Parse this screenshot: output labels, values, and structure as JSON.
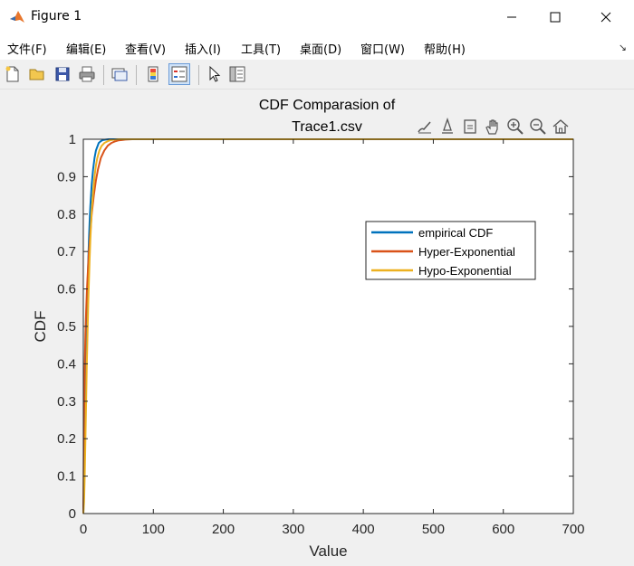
{
  "window": {
    "title": "Figure 1",
    "icon": "matlab-icon"
  },
  "menu": {
    "items": [
      {
        "label": "文件(F)"
      },
      {
        "label": "编辑(E)"
      },
      {
        "label": "查看(V)"
      },
      {
        "label": "插入(I)"
      },
      {
        "label": "工具(T)"
      },
      {
        "label": "桌面(D)"
      },
      {
        "label": "窗口(W)"
      },
      {
        "label": "帮助(H)"
      }
    ]
  },
  "toolbar": {
    "icons": [
      "new-figure-icon",
      "open-icon",
      "save-icon",
      "print-icon",
      "link-plot-icon",
      "colorbar-icon",
      "legend-icon",
      "pointer-icon",
      "property-editor-icon"
    ]
  },
  "axes_toolbar": {
    "icons": [
      "brush-icon",
      "data-tips-icon",
      "restore-view-icon",
      "pan-icon",
      "zoom-in-icon",
      "zoom-out-icon",
      "home-icon"
    ]
  },
  "chart_data": {
    "type": "line",
    "title": "CDF Comparasion of Trace1.csv",
    "title_lines": [
      "CDF Comparasion of",
      "Trace1.csv"
    ],
    "xlabel": "Value",
    "ylabel": "CDF",
    "xlim": [
      0,
      700
    ],
    "ylim": [
      0,
      1
    ],
    "xticks": [
      0,
      100,
      200,
      300,
      400,
      500,
      600,
      700
    ],
    "yticks": [
      0,
      0.1,
      0.2,
      0.3,
      0.4,
      0.5,
      0.6,
      0.7,
      0.8,
      0.9,
      1
    ],
    "grid": false,
    "legend_position": "right",
    "series": [
      {
        "name": "empirical CDF",
        "color": "#0072bd",
        "x": [
          0,
          1,
          2,
          3,
          4,
          5,
          6,
          7,
          8,
          9,
          10,
          12,
          14,
          16,
          18,
          20,
          22,
          25,
          28,
          32,
          36,
          40,
          50,
          700
        ],
        "y": [
          0,
          0.08,
          0.2,
          0.32,
          0.43,
          0.52,
          0.6,
          0.67,
          0.73,
          0.78,
          0.82,
          0.88,
          0.92,
          0.95,
          0.97,
          0.98,
          0.99,
          0.995,
          0.998,
          0.999,
          1,
          1,
          1,
          1
        ]
      },
      {
        "name": "Hyper-Exponential",
        "color": "#d95319",
        "x": [
          0,
          1,
          2,
          3,
          4,
          5,
          6,
          8,
          10,
          12,
          15,
          18,
          21,
          25,
          30,
          35,
          40,
          45,
          50,
          55,
          60,
          70,
          700
        ],
        "y": [
          0,
          0.25,
          0.39,
          0.48,
          0.54,
          0.59,
          0.63,
          0.7,
          0.75,
          0.8,
          0.85,
          0.89,
          0.92,
          0.95,
          0.97,
          0.983,
          0.99,
          0.994,
          0.997,
          0.998,
          0.999,
          1,
          1
        ]
      },
      {
        "name": "Hypo-Exponential",
        "color": "#edb120",
        "x": [
          0,
          1,
          2,
          3,
          4,
          5,
          6,
          7,
          8,
          9,
          10,
          12,
          14,
          16,
          18,
          20,
          23,
          26,
          30,
          35,
          40,
          45,
          50,
          60,
          700
        ],
        "y": [
          0,
          0.03,
          0.1,
          0.2,
          0.3,
          0.4,
          0.48,
          0.56,
          0.62,
          0.68,
          0.73,
          0.81,
          0.86,
          0.9,
          0.93,
          0.95,
          0.97,
          0.982,
          0.99,
          0.995,
          0.998,
          0.999,
          1,
          1,
          1
        ]
      }
    ]
  }
}
